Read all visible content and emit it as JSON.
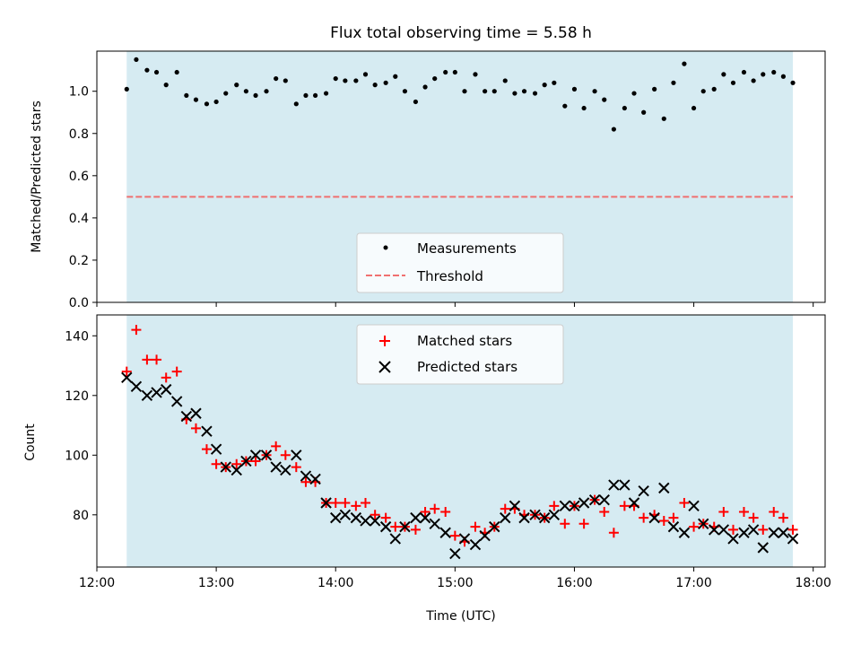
{
  "chart_data": [
    {
      "type": "scatter",
      "title": "Flux total observing time = 5.58 h",
      "xlabel": "",
      "ylabel": "Matched/Predicted stars",
      "xlim": [
        12.0,
        18.1
      ],
      "ylim": [
        0,
        1.19
      ],
      "yticks": [
        0.0,
        0.2,
        0.4,
        0.6,
        0.8,
        1.0
      ],
      "ytick_labels": [
        "0.0",
        "0.2",
        "0.4",
        "0.6",
        "0.8",
        "1.0"
      ],
      "shaded_span": [
        12.25,
        17.83
      ],
      "threshold": 0.5,
      "legend": {
        "placement": "lower-center",
        "entries": [
          "Measurements",
          "Threshold"
        ]
      },
      "series": [
        {
          "name": "Measurements",
          "x": [
            12.25,
            12.33,
            12.42,
            12.5,
            12.58,
            12.67,
            12.75,
            12.83,
            12.92,
            13.0,
            13.08,
            13.17,
            13.25,
            13.33,
            13.42,
            13.5,
            13.58,
            13.67,
            13.75,
            13.83,
            13.92,
            14.0,
            14.08,
            14.17,
            14.25,
            14.33,
            14.42,
            14.5,
            14.58,
            14.67,
            14.75,
            14.83,
            14.92,
            15.0,
            15.08,
            15.17,
            15.25,
            15.33,
            15.42,
            15.5,
            15.58,
            15.67,
            15.75,
            15.83,
            15.92,
            16.0,
            16.08,
            16.17,
            16.25,
            16.33,
            16.42,
            16.5,
            16.58,
            16.67,
            16.75,
            16.83,
            16.92,
            17.0,
            17.08,
            17.17,
            17.25,
            17.33,
            17.42,
            17.5,
            17.58,
            17.67,
            17.75,
            17.83
          ],
          "y": [
            1.01,
            1.15,
            1.1,
            1.09,
            1.03,
            1.09,
            0.98,
            0.96,
            0.94,
            0.95,
            0.99,
            1.03,
            1.0,
            0.98,
            1.0,
            1.06,
            1.05,
            0.94,
            0.98,
            0.98,
            0.99,
            1.06,
            1.05,
            1.05,
            1.08,
            1.03,
            1.04,
            1.07,
            1.0,
            0.95,
            1.02,
            1.06,
            1.09,
            1.09,
            1.0,
            1.08,
            1.0,
            1.0,
            1.05,
            0.99,
            1.0,
            0.99,
            1.03,
            1.04,
            0.93,
            1.01,
            0.92,
            1.0,
            0.96,
            0.82,
            0.92,
            0.99,
            0.9,
            1.01,
            0.87,
            1.04,
            1.13,
            0.92,
            1.0,
            1.01,
            1.08,
            1.04,
            1.09,
            1.05,
            1.08,
            1.09,
            1.07,
            1.04
          ]
        }
      ]
    },
    {
      "type": "scatter",
      "title": "",
      "xlabel": "Time (UTC)",
      "ylabel": "Count",
      "xlim": [
        12.0,
        18.1
      ],
      "ylim": [
        62.5,
        147
      ],
      "xticks": [
        12,
        13,
        14,
        15,
        16,
        17,
        18
      ],
      "xtick_labels": [
        "12:00",
        "13:00",
        "14:00",
        "15:00",
        "16:00",
        "17:00",
        "18:00"
      ],
      "yticks": [
        80,
        100,
        120,
        140
      ],
      "ytick_labels": [
        "80",
        "100",
        "120",
        "140"
      ],
      "shaded_span": [
        12.25,
        17.83
      ],
      "legend": {
        "placement": "upper-center",
        "entries": [
          "Matched stars",
          "Predicted stars"
        ]
      },
      "series": [
        {
          "name": "Matched stars",
          "x": [
            12.25,
            12.33,
            12.42,
            12.5,
            12.58,
            12.67,
            12.75,
            12.83,
            12.92,
            13.0,
            13.08,
            13.17,
            13.25,
            13.33,
            13.42,
            13.5,
            13.58,
            13.67,
            13.75,
            13.83,
            13.92,
            14.0,
            14.08,
            14.17,
            14.25,
            14.33,
            14.42,
            14.5,
            14.58,
            14.67,
            14.75,
            14.83,
            14.92,
            15.0,
            15.08,
            15.17,
            15.25,
            15.33,
            15.42,
            15.5,
            15.58,
            15.67,
            15.75,
            15.83,
            15.92,
            16.0,
            16.08,
            16.17,
            16.25,
            16.33,
            16.42,
            16.5,
            16.58,
            16.67,
            16.75,
            16.83,
            16.92,
            17.0,
            17.08,
            17.17,
            17.25,
            17.33,
            17.42,
            17.5,
            17.58,
            17.67,
            17.75,
            17.83
          ],
          "y": [
            128,
            142,
            132,
            132,
            126,
            128,
            112,
            109,
            102,
            97,
            96,
            97,
            98,
            98,
            100,
            103,
            100,
            96,
            91,
            91,
            84,
            84,
            84,
            83,
            84,
            80,
            79,
            76,
            76,
            75,
            81,
            82,
            81,
            73,
            71,
            76,
            74,
            76,
            82,
            82,
            80,
            80,
            79,
            83,
            77,
            83,
            77,
            85,
            81,
            74,
            83,
            83,
            79,
            80,
            78,
            79,
            84,
            76,
            77,
            76,
            81,
            75,
            81,
            79,
            75,
            81,
            79,
            75
          ]
        },
        {
          "name": "Predicted stars",
          "x": [
            12.25,
            12.33,
            12.42,
            12.5,
            12.58,
            12.67,
            12.75,
            12.83,
            12.92,
            13.0,
            13.08,
            13.17,
            13.25,
            13.33,
            13.42,
            13.5,
            13.58,
            13.67,
            13.75,
            13.83,
            13.92,
            14.0,
            14.08,
            14.17,
            14.25,
            14.33,
            14.42,
            14.5,
            14.58,
            14.67,
            14.75,
            14.83,
            14.92,
            15.0,
            15.08,
            15.17,
            15.25,
            15.33,
            15.42,
            15.5,
            15.58,
            15.67,
            15.75,
            15.83,
            15.92,
            16.0,
            16.08,
            16.17,
            16.25,
            16.33,
            16.42,
            16.5,
            16.58,
            16.67,
            16.75,
            16.83,
            16.92,
            17.0,
            17.08,
            17.17,
            17.25,
            17.33,
            17.42,
            17.5,
            17.58,
            17.67,
            17.75,
            17.83
          ],
          "y": [
            126,
            123,
            120,
            121,
            122,
            118,
            113,
            114,
            108,
            102,
            96,
            95,
            98,
            100,
            100,
            96,
            95,
            100,
            93,
            92,
            84,
            79,
            80,
            79,
            78,
            78,
            76,
            72,
            76,
            79,
            79,
            77,
            74,
            67,
            72,
            70,
            73,
            76,
            79,
            83,
            79,
            80,
            79,
            80,
            83,
            83,
            84,
            85,
            85,
            90,
            90,
            84,
            88,
            79,
            89,
            76,
            74,
            83,
            77,
            75,
            75,
            72,
            74,
            75,
            69,
            74,
            74,
            72
          ]
        }
      ]
    }
  ]
}
